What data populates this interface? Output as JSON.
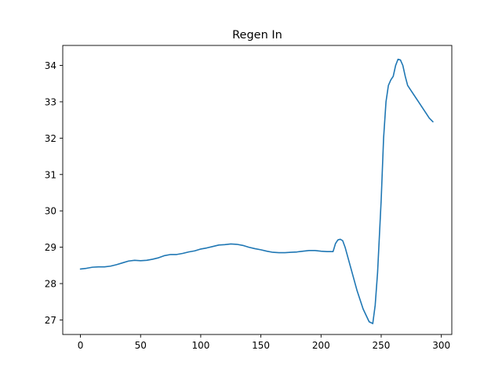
{
  "chart_data": {
    "type": "line",
    "title": "Regen In",
    "xlabel": "",
    "ylabel": "",
    "xlim": [
      -14.7,
      308.7
    ],
    "ylim": [
      26.6,
      34.55
    ],
    "xticks": [
      0,
      50,
      100,
      150,
      200,
      250,
      300
    ],
    "yticks": [
      27,
      28,
      29,
      30,
      31,
      32,
      33,
      34
    ],
    "grid": false,
    "series": [
      {
        "name": "Regen In",
        "color": "#1f77b4",
        "x": [
          0,
          5,
          10,
          15,
          20,
          25,
          30,
          35,
          40,
          45,
          50,
          55,
          60,
          65,
          70,
          75,
          80,
          85,
          90,
          95,
          100,
          105,
          110,
          115,
          120,
          125,
          130,
          135,
          140,
          145,
          150,
          155,
          160,
          165,
          170,
          175,
          180,
          185,
          190,
          195,
          200,
          205,
          210,
          212,
          214,
          216,
          218,
          220,
          225,
          230,
          235,
          240,
          243,
          245,
          247,
          250,
          252,
          254,
          256,
          258,
          260,
          262,
          264,
          266,
          268,
          270,
          272,
          275,
          280,
          285,
          290,
          293
        ],
        "y": [
          28.4,
          28.42,
          28.45,
          28.46,
          28.46,
          28.48,
          28.52,
          28.57,
          28.62,
          28.64,
          28.63,
          28.64,
          28.67,
          28.71,
          28.77,
          28.8,
          28.8,
          28.83,
          28.87,
          28.9,
          28.95,
          28.98,
          29.02,
          29.06,
          29.07,
          29.09,
          29.08,
          29.05,
          29.0,
          28.96,
          28.93,
          28.89,
          28.86,
          28.85,
          28.85,
          28.86,
          28.87,
          28.89,
          28.91,
          28.91,
          28.89,
          28.88,
          28.88,
          29.1,
          29.2,
          29.22,
          29.18,
          29.0,
          28.4,
          27.8,
          27.3,
          26.95,
          26.9,
          27.4,
          28.3,
          30.3,
          32.0,
          33.0,
          33.45,
          33.6,
          33.7,
          34.0,
          34.17,
          34.15,
          34.0,
          33.7,
          33.45,
          33.3,
          33.05,
          32.8,
          32.55,
          32.45
        ]
      }
    ]
  }
}
